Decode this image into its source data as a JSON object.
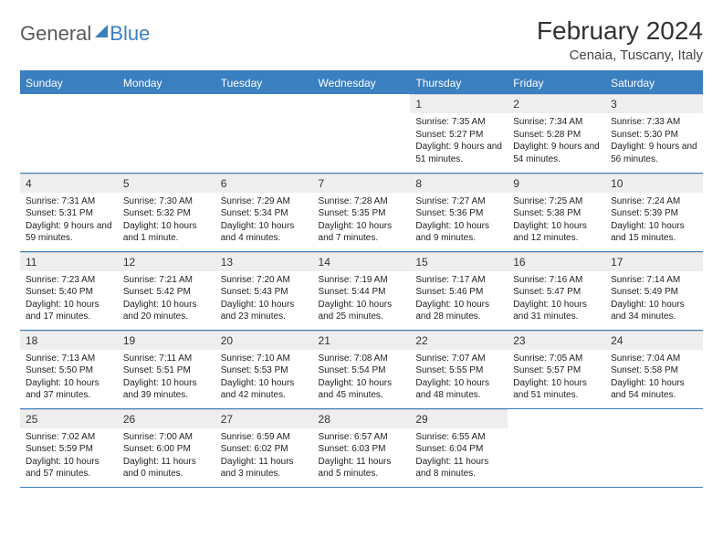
{
  "brand": {
    "part1": "General",
    "part2": "Blue"
  },
  "title": "February 2024",
  "location": "Cenaia, Tuscany, Italy",
  "colors": {
    "header_bg": "#3a7fc0",
    "header_text": "#ffffff",
    "daynum_bg": "#eeeeee",
    "border": "#3a7fc0",
    "text": "#222222"
  },
  "layout": {
    "first_weekday_index": 4,
    "days_in_month": 29,
    "weekday_labels": [
      "Sunday",
      "Monday",
      "Tuesday",
      "Wednesday",
      "Thursday",
      "Friday",
      "Saturday"
    ]
  },
  "days": [
    {
      "n": 1,
      "sunrise": "7:35 AM",
      "sunset": "5:27 PM",
      "daylight": "9 hours and 51 minutes."
    },
    {
      "n": 2,
      "sunrise": "7:34 AM",
      "sunset": "5:28 PM",
      "daylight": "9 hours and 54 minutes."
    },
    {
      "n": 3,
      "sunrise": "7:33 AM",
      "sunset": "5:30 PM",
      "daylight": "9 hours and 56 minutes."
    },
    {
      "n": 4,
      "sunrise": "7:31 AM",
      "sunset": "5:31 PM",
      "daylight": "9 hours and 59 minutes."
    },
    {
      "n": 5,
      "sunrise": "7:30 AM",
      "sunset": "5:32 PM",
      "daylight": "10 hours and 1 minute."
    },
    {
      "n": 6,
      "sunrise": "7:29 AM",
      "sunset": "5:34 PM",
      "daylight": "10 hours and 4 minutes."
    },
    {
      "n": 7,
      "sunrise": "7:28 AM",
      "sunset": "5:35 PM",
      "daylight": "10 hours and 7 minutes."
    },
    {
      "n": 8,
      "sunrise": "7:27 AM",
      "sunset": "5:36 PM",
      "daylight": "10 hours and 9 minutes."
    },
    {
      "n": 9,
      "sunrise": "7:25 AM",
      "sunset": "5:38 PM",
      "daylight": "10 hours and 12 minutes."
    },
    {
      "n": 10,
      "sunrise": "7:24 AM",
      "sunset": "5:39 PM",
      "daylight": "10 hours and 15 minutes."
    },
    {
      "n": 11,
      "sunrise": "7:23 AM",
      "sunset": "5:40 PM",
      "daylight": "10 hours and 17 minutes."
    },
    {
      "n": 12,
      "sunrise": "7:21 AM",
      "sunset": "5:42 PM",
      "daylight": "10 hours and 20 minutes."
    },
    {
      "n": 13,
      "sunrise": "7:20 AM",
      "sunset": "5:43 PM",
      "daylight": "10 hours and 23 minutes."
    },
    {
      "n": 14,
      "sunrise": "7:19 AM",
      "sunset": "5:44 PM",
      "daylight": "10 hours and 25 minutes."
    },
    {
      "n": 15,
      "sunrise": "7:17 AM",
      "sunset": "5:46 PM",
      "daylight": "10 hours and 28 minutes."
    },
    {
      "n": 16,
      "sunrise": "7:16 AM",
      "sunset": "5:47 PM",
      "daylight": "10 hours and 31 minutes."
    },
    {
      "n": 17,
      "sunrise": "7:14 AM",
      "sunset": "5:49 PM",
      "daylight": "10 hours and 34 minutes."
    },
    {
      "n": 18,
      "sunrise": "7:13 AM",
      "sunset": "5:50 PM",
      "daylight": "10 hours and 37 minutes."
    },
    {
      "n": 19,
      "sunrise": "7:11 AM",
      "sunset": "5:51 PM",
      "daylight": "10 hours and 39 minutes."
    },
    {
      "n": 20,
      "sunrise": "7:10 AM",
      "sunset": "5:53 PM",
      "daylight": "10 hours and 42 minutes."
    },
    {
      "n": 21,
      "sunrise": "7:08 AM",
      "sunset": "5:54 PM",
      "daylight": "10 hours and 45 minutes."
    },
    {
      "n": 22,
      "sunrise": "7:07 AM",
      "sunset": "5:55 PM",
      "daylight": "10 hours and 48 minutes."
    },
    {
      "n": 23,
      "sunrise": "7:05 AM",
      "sunset": "5:57 PM",
      "daylight": "10 hours and 51 minutes."
    },
    {
      "n": 24,
      "sunrise": "7:04 AM",
      "sunset": "5:58 PM",
      "daylight": "10 hours and 54 minutes."
    },
    {
      "n": 25,
      "sunrise": "7:02 AM",
      "sunset": "5:59 PM",
      "daylight": "10 hours and 57 minutes."
    },
    {
      "n": 26,
      "sunrise": "7:00 AM",
      "sunset": "6:00 PM",
      "daylight": "11 hours and 0 minutes."
    },
    {
      "n": 27,
      "sunrise": "6:59 AM",
      "sunset": "6:02 PM",
      "daylight": "11 hours and 3 minutes."
    },
    {
      "n": 28,
      "sunrise": "6:57 AM",
      "sunset": "6:03 PM",
      "daylight": "11 hours and 5 minutes."
    },
    {
      "n": 29,
      "sunrise": "6:55 AM",
      "sunset": "6:04 PM",
      "daylight": "11 hours and 8 minutes."
    }
  ],
  "labels": {
    "sunrise_prefix": "Sunrise: ",
    "sunset_prefix": "Sunset: ",
    "daylight_prefix": "Daylight: "
  }
}
